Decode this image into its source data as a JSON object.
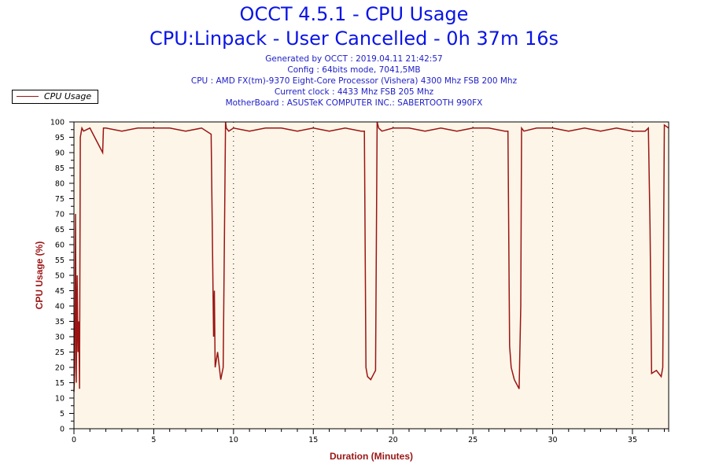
{
  "header": {
    "title": "OCCT 4.5.1 - CPU Usage",
    "subtitle": "CPU:Linpack - User Cancelled - 0h 37m 16s",
    "info_lines": [
      "Generated by OCCT : 2019.04.11 21:42:57",
      "Config : 64bits mode, 7041,5MB",
      "CPU : AMD FX(tm)-9370 Eight-Core Processor (Vishera) 4300 Mhz FSB 200 Mhz",
      "Current clock : 4433 Mhz FSB 205 Mhz",
      "MotherBoard : ASUSTeK COMPUTER INC.: SABERTOOTH 990FX"
    ]
  },
  "legend": {
    "label": "CPU Usage",
    "color": "#9b1414"
  },
  "colors": {
    "line": "#9b1414",
    "plot_bg": "#fdf6e8",
    "title": "#0a14e6",
    "info": "#2020c8",
    "axis_title": "#9b1414"
  },
  "chart_data": {
    "type": "line",
    "title": "OCCT 4.5.1 - CPU Usage",
    "subtitle": "CPU:Linpack - User Cancelled - 0h 37m 16s",
    "xlabel": "Duration (Minutes)",
    "ylabel": "CPU Usage (%)",
    "xlim": [
      0,
      37.27
    ],
    "ylim": [
      0,
      100
    ],
    "x_ticks": [
      0,
      5,
      10,
      15,
      20,
      25,
      30,
      35
    ],
    "y_ticks": [
      0,
      5,
      10,
      15,
      20,
      25,
      30,
      35,
      40,
      45,
      50,
      55,
      60,
      65,
      70,
      75,
      80,
      85,
      90,
      95,
      100
    ],
    "grid": "vertical dotted at major x ticks",
    "legend_position": "top-left, outside plot",
    "series": [
      {
        "name": "CPU Usage",
        "x": [
          0,
          0.05,
          0.1,
          0.15,
          0.2,
          0.25,
          0.3,
          0.35,
          0.4,
          0.5,
          0.6,
          1.0,
          1.8,
          1.85,
          2.0,
          3.0,
          4.0,
          5.0,
          6.0,
          7.0,
          8.0,
          8.6,
          8.75,
          8.8,
          8.85,
          9.0,
          9.2,
          9.35,
          9.5,
          9.55,
          9.7,
          10.0,
          11.0,
          12.0,
          13.0,
          14.0,
          15.0,
          16.0,
          17.0,
          18.0,
          18.2,
          18.3,
          18.4,
          18.6,
          18.8,
          18.9,
          19.0,
          19.1,
          19.3,
          20.0,
          21.0,
          22.0,
          23.0,
          24.0,
          25.0,
          26.0,
          27.0,
          27.2,
          27.25,
          27.3,
          27.4,
          27.6,
          27.8,
          27.9,
          28.0,
          28.05,
          28.2,
          29.0,
          30.0,
          31.0,
          32.0,
          33.0,
          34.0,
          35.0,
          35.8,
          36.0,
          36.1,
          36.2,
          36.5,
          36.8,
          36.9,
          37.0,
          37.27
        ],
        "values": [
          12,
          20,
          70,
          15,
          50,
          25,
          35,
          13,
          95,
          98,
          97,
          98,
          90,
          98,
          98,
          97,
          98,
          98,
          98,
          97,
          98,
          96,
          30,
          45,
          20,
          25,
          16,
          20,
          100,
          98,
          97,
          98,
          97,
          98,
          98,
          97,
          98,
          97,
          98,
          97,
          97,
          20,
          17,
          16,
          18,
          19,
          100,
          98,
          97,
          98,
          98,
          97,
          98,
          97,
          98,
          98,
          97,
          97,
          60,
          27,
          20,
          16,
          14,
          13,
          40,
          98,
          97,
          98,
          98,
          97,
          98,
          97,
          98,
          97,
          97,
          98,
          66,
          18,
          19,
          17,
          20,
          99,
          98
        ]
      }
    ]
  }
}
